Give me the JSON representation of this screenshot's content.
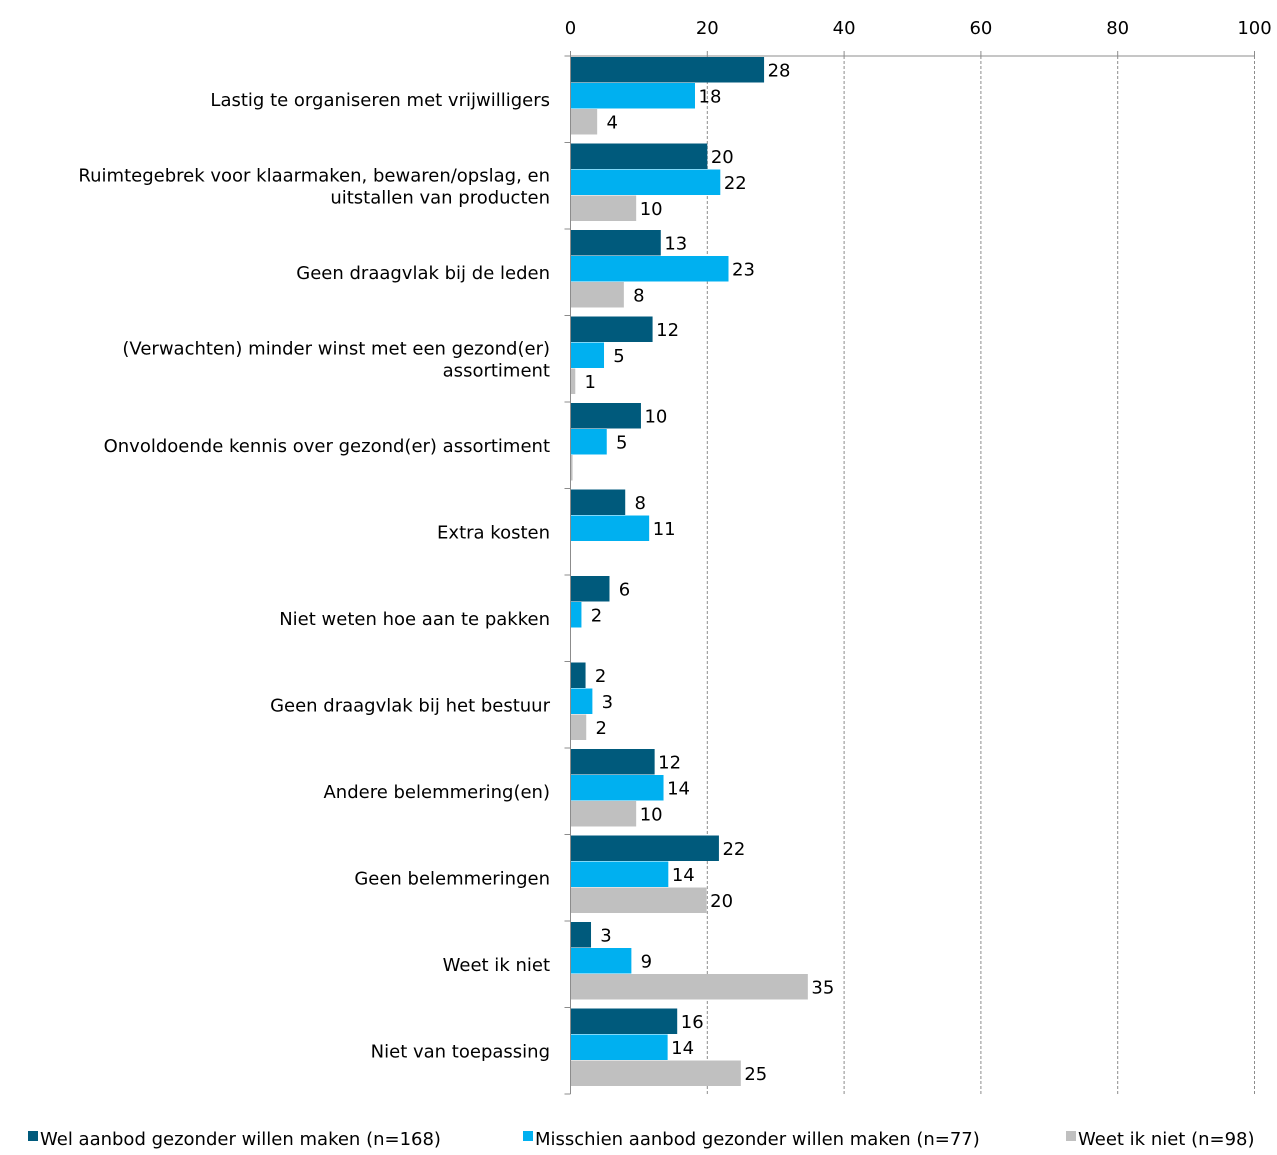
{
  "chart_data": {
    "type": "bar",
    "orientation": "horizontal",
    "title": "",
    "xlabel": "",
    "ylabel": "",
    "xlim": [
      0,
      100
    ],
    "ticks": [
      "0",
      "20",
      "40",
      "60",
      "80",
      "100"
    ],
    "tick_values": [
      0,
      20,
      40,
      60,
      80,
      100
    ],
    "grid": true,
    "legend_position": "bottom",
    "categories": [
      [
        "Lastig te organiseren met vrijwilligers"
      ],
      [
        "Ruimtegebrek voor klaarmaken, bewaren/opslag, en",
        "uitstallen van producten"
      ],
      [
        "Geen draagvlak bij de leden"
      ],
      [
        "(Verwachten) minder winst met een gezond(er)",
        "assortiment"
      ],
      [
        "Onvoldoende kennis over gezond(er) assortiment"
      ],
      [
        "Extra kosten"
      ],
      [
        "Niet weten hoe aan te pakken"
      ],
      [
        "Geen draagvlak bij het bestuur"
      ],
      [
        "Andere belemmering(en)"
      ],
      [
        "Geen belemmeringen"
      ],
      [
        "Weet ik niet"
      ],
      [
        "Niet van toepassing"
      ]
    ],
    "series": [
      {
        "name": "Wel aanbod gezonder willen maken (n=168)",
        "color": "#005a7c",
        "values": [
          28.3,
          20,
          13.2,
          12,
          10.3,
          8,
          5.7,
          2.2,
          12.3,
          21.7,
          3,
          15.6
        ],
        "labels": [
          "28",
          "20",
          "13",
          "12",
          "10",
          "8",
          "6",
          "2",
          "12",
          "22",
          "3",
          "16"
        ]
      },
      {
        "name": "Misschien aanbod gezonder willen maken (n=77)",
        "color": "#00b0f0",
        "values": [
          18.2,
          21.9,
          23.1,
          4.9,
          5.3,
          11.5,
          1.6,
          3.2,
          13.6,
          14.3,
          8.9,
          14.2
        ],
        "labels": [
          "18",
          "22",
          "23",
          "5",
          "5",
          "11",
          "2",
          "3",
          "14",
          "14",
          "9",
          "14"
        ]
      },
      {
        "name": "Weet ik niet (n=98)",
        "color": "#c0c0c0",
        "values": [
          3.9,
          9.6,
          7.8,
          0.7,
          0.3,
          0,
          0,
          2.3,
          9.6,
          19.9,
          34.7,
          24.9
        ],
        "labels": [
          "4",
          "10",
          "8",
          "1",
          "",
          "",
          "",
          "2",
          "10",
          "20",
          "35",
          "25"
        ]
      }
    ]
  }
}
